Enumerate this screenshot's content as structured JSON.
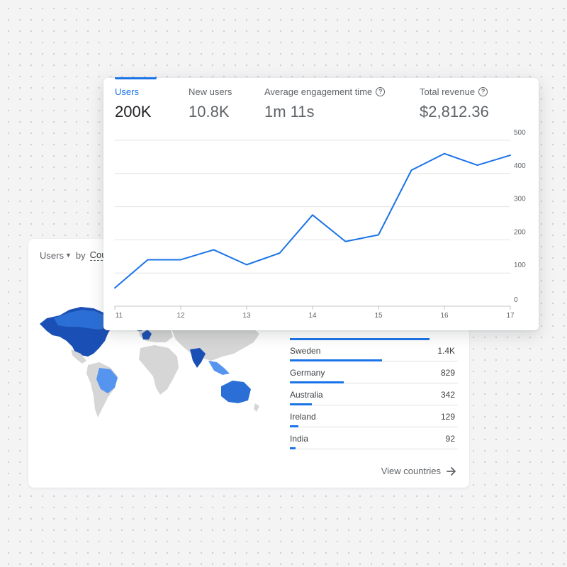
{
  "metrics_card": {
    "metrics": [
      {
        "label": "Users",
        "value": "200K",
        "active": true,
        "help": false
      },
      {
        "label": "New users",
        "value": "10.8K",
        "active": false,
        "help": false
      },
      {
        "label": "Average engagement time",
        "value": "1m 11s",
        "active": false,
        "help": true
      },
      {
        "label": "Total revenue",
        "value": "$2,812.36",
        "active": false,
        "help": true
      }
    ],
    "help_icon_glyph": "?"
  },
  "chart_data": {
    "type": "line",
    "x": [
      11,
      11.5,
      12,
      12.5,
      13,
      13.5,
      14,
      14.5,
      15,
      15.5,
      16,
      16.5,
      17
    ],
    "series": [
      {
        "values": [
          55,
          140,
          140,
          170,
          125,
          160,
          275,
          195,
          215,
          410,
          460,
          425,
          455
        ]
      }
    ],
    "x_ticks": [
      "11",
      "12",
      "13",
      "14",
      "15",
      "16",
      "17"
    ],
    "y_ticks": [
      "0",
      "100",
      "200",
      "300",
      "400",
      "500"
    ],
    "xlim": [
      11,
      17
    ],
    "ylim": [
      0,
      500
    ],
    "grid": true,
    "line_color": "#1a73e8"
  },
  "countries_card": {
    "metric_selector": "Users",
    "by_text": "by",
    "dimension_chip": "Cou",
    "countries": [
      {
        "name": "Sweden",
        "value": "1.4K",
        "share": 0.55
      },
      {
        "name": "Germany",
        "value": "829",
        "share": 0.32
      },
      {
        "name": "Australia",
        "value": "342",
        "share": 0.13
      },
      {
        "name": "Ireland",
        "value": "129",
        "share": 0.05
      },
      {
        "name": "India",
        "value": "92",
        "share": 0.035
      }
    ],
    "top_row_share": 0.83,
    "view_link": "View countries",
    "map_colors": {
      "dark": "#1a4fb5",
      "mid": "#2b6fd6",
      "light": "#5595f0",
      "land": "#d6d6d6"
    }
  }
}
